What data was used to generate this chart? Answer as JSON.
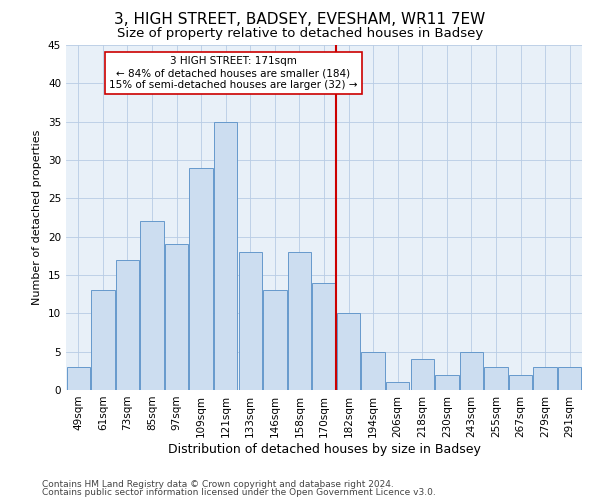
{
  "title1": "3, HIGH STREET, BADSEY, EVESHAM, WR11 7EW",
  "title2": "Size of property relative to detached houses in Badsey",
  "xlabel": "Distribution of detached houses by size in Badsey",
  "ylabel": "Number of detached properties",
  "footnote1": "Contains HM Land Registry data © Crown copyright and database right 2024.",
  "footnote2": "Contains public sector information licensed under the Open Government Licence v3.0.",
  "bar_labels": [
    "49sqm",
    "61sqm",
    "73sqm",
    "85sqm",
    "97sqm",
    "109sqm",
    "121sqm",
    "133sqm",
    "146sqm",
    "158sqm",
    "170sqm",
    "182sqm",
    "194sqm",
    "206sqm",
    "218sqm",
    "230sqm",
    "243sqm",
    "255sqm",
    "267sqm",
    "279sqm",
    "291sqm"
  ],
  "bar_values": [
    3,
    13,
    17,
    22,
    19,
    29,
    35,
    18,
    13,
    18,
    14,
    10,
    5,
    1,
    4,
    2,
    5,
    3,
    2,
    3,
    3
  ],
  "bar_color": "#ccddf0",
  "bar_edge_color": "#6699cc",
  "grid_color": "#b8cce4",
  "background_color": "#e8f0f8",
  "vline_color": "#cc0000",
  "annotation_box_color": "#cc0000",
  "ylim": [
    0,
    45
  ],
  "yticks": [
    0,
    5,
    10,
    15,
    20,
    25,
    30,
    35,
    40,
    45
  ],
  "title1_fontsize": 11,
  "title2_fontsize": 9.5,
  "xlabel_fontsize": 9,
  "ylabel_fontsize": 8,
  "footnote_fontsize": 6.5,
  "tick_fontsize": 7.5,
  "annotation_fontsize": 7.5
}
